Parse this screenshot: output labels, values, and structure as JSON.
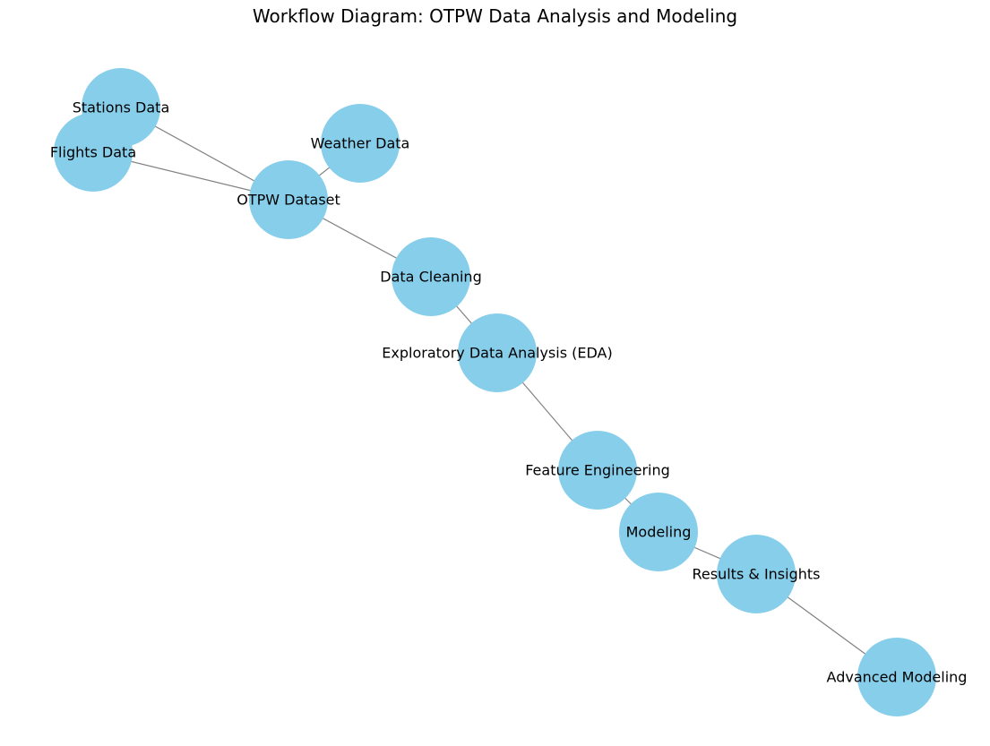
{
  "diagram": {
    "title": "Workflow Diagram: OTPW Data Analysis and Modeling",
    "node_color": "#87CEEB",
    "edge_color": "#808080",
    "label_color": "#000000",
    "nodes": [
      {
        "id": "flights",
        "label": "Flights Data"
      },
      {
        "id": "weather",
        "label": "Weather Data"
      },
      {
        "id": "stations",
        "label": "Stations Data"
      },
      {
        "id": "otpw",
        "label": "OTPW Dataset"
      },
      {
        "id": "cleaning",
        "label": "Data Cleaning"
      },
      {
        "id": "eda",
        "label": "Exploratory Data Analysis (EDA)"
      },
      {
        "id": "features",
        "label": "Feature Engineering"
      },
      {
        "id": "modeling",
        "label": "Modeling"
      },
      {
        "id": "results",
        "label": "Results & Insights"
      },
      {
        "id": "advanced",
        "label": "Advanced Modeling"
      }
    ],
    "edges": [
      {
        "from": "flights",
        "to": "otpw"
      },
      {
        "from": "weather",
        "to": "otpw"
      },
      {
        "from": "stations",
        "to": "otpw"
      },
      {
        "from": "otpw",
        "to": "cleaning"
      },
      {
        "from": "cleaning",
        "to": "eda"
      },
      {
        "from": "eda",
        "to": "features"
      },
      {
        "from": "features",
        "to": "modeling"
      },
      {
        "from": "modeling",
        "to": "results"
      },
      {
        "from": "results",
        "to": "advanced"
      }
    ]
  }
}
